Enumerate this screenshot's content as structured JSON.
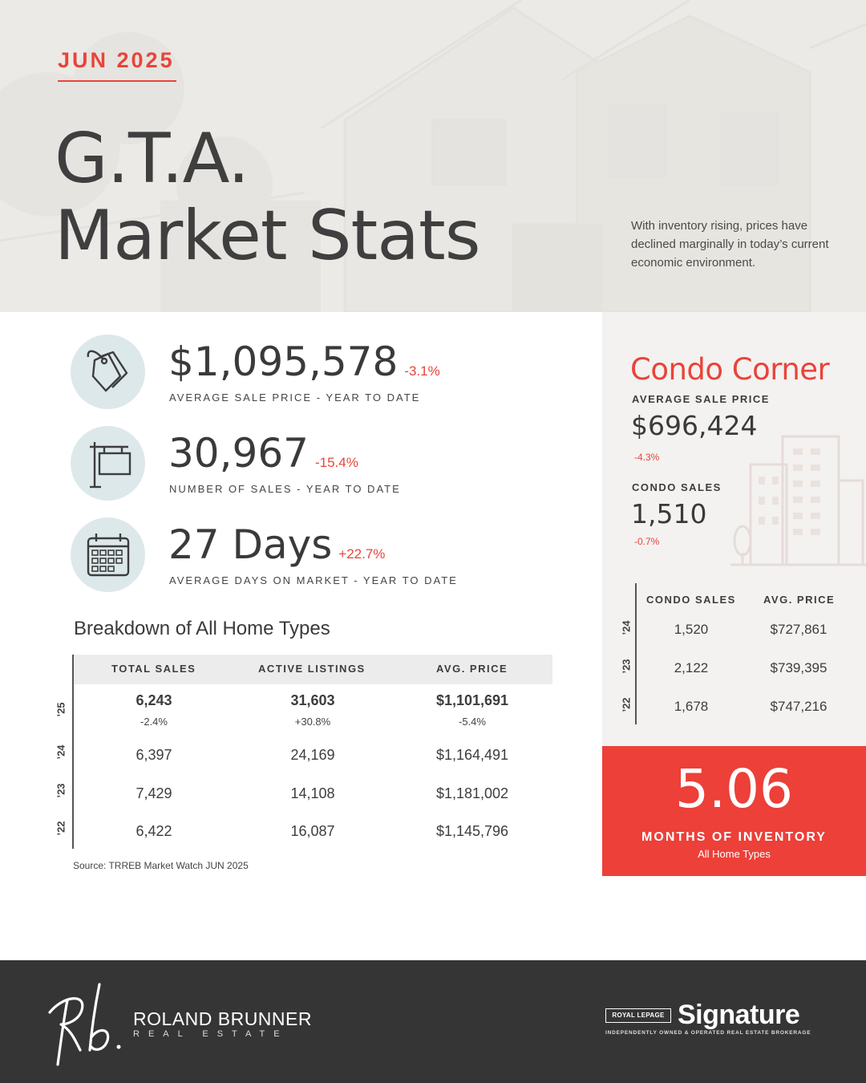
{
  "hero": {
    "date": "JUN 2025",
    "title_line1": "G.T.A.",
    "title_line2": "Market Stats",
    "intro": "With inventory rising, prices have declined marginally in today’s current economic environment."
  },
  "stats": [
    {
      "value": "$1,095,578",
      "change": "-3.1%",
      "label": "AVERAGE SALE PRICE - YEAR TO DATE",
      "icon": "price-tag-icon"
    },
    {
      "value": "30,967",
      "change": "-15.4%",
      "label": "NUMBER OF SALES - YEAR TO DATE",
      "icon": "for-sale-sign-icon"
    },
    {
      "value": "27 Days",
      "change": "+22.7%",
      "label": "AVERAGE DAYS ON MARKET - YEAR TO DATE",
      "icon": "calendar-icon"
    }
  ],
  "breakdown": {
    "title": "Breakdown of All Home Types",
    "headers": [
      "TOTAL SALES",
      "ACTIVE LISTINGS",
      "AVG. PRICE"
    ],
    "rows": [
      {
        "year": "’25",
        "cells": [
          "6,243",
          "31,603",
          "$1,101,691"
        ],
        "changes": [
          "-2.4%",
          "+30.8%",
          "-5.4%"
        ]
      },
      {
        "year": "’24",
        "cells": [
          "6,397",
          "24,169",
          "$1,164,491"
        ]
      },
      {
        "year": "’23",
        "cells": [
          "7,429",
          "14,108",
          "$1,181,002"
        ]
      },
      {
        "year": "’22",
        "cells": [
          "6,422",
          "16,087",
          "$1,145,796"
        ]
      }
    ],
    "source": "Source: TRREB Market Watch JUN 2025"
  },
  "condo": {
    "title": "Condo Corner",
    "avg_label": "AVERAGE SALE PRICE",
    "avg_value": "$696,424",
    "avg_change": "-4.3%",
    "sales_label": "CONDO SALES",
    "sales_value": "1,510",
    "sales_change": "-0.7%",
    "table_headers": [
      "CONDO SALES",
      "AVG. PRICE"
    ],
    "table_rows": [
      {
        "year": "’24",
        "cells": [
          "1,520",
          "$727,861"
        ]
      },
      {
        "year": "’23",
        "cells": [
          "2,122",
          "$739,395"
        ]
      },
      {
        "year": "’22",
        "cells": [
          "1,678",
          "$747,216"
        ]
      }
    ]
  },
  "inventory": {
    "value": "5.06",
    "label": "MONTHS OF INVENTORY",
    "sub": "All Home Types"
  },
  "footer": {
    "brand_name": "ROLAND BRUNNER",
    "brand_sub": "REAL ESTATE",
    "brokerage_badge": "ROYAL LEPAGE",
    "brokerage_name": "Signature",
    "brokerage_tag": "INDEPENDENTLY OWNED & OPERATED REAL ESTATE BROKERAGE"
  },
  "colors": {
    "accent": "#e8443b",
    "icon_bg": "#dde8ea",
    "footer_bg": "#353535",
    "panel_bg": "#f3f2f0"
  }
}
